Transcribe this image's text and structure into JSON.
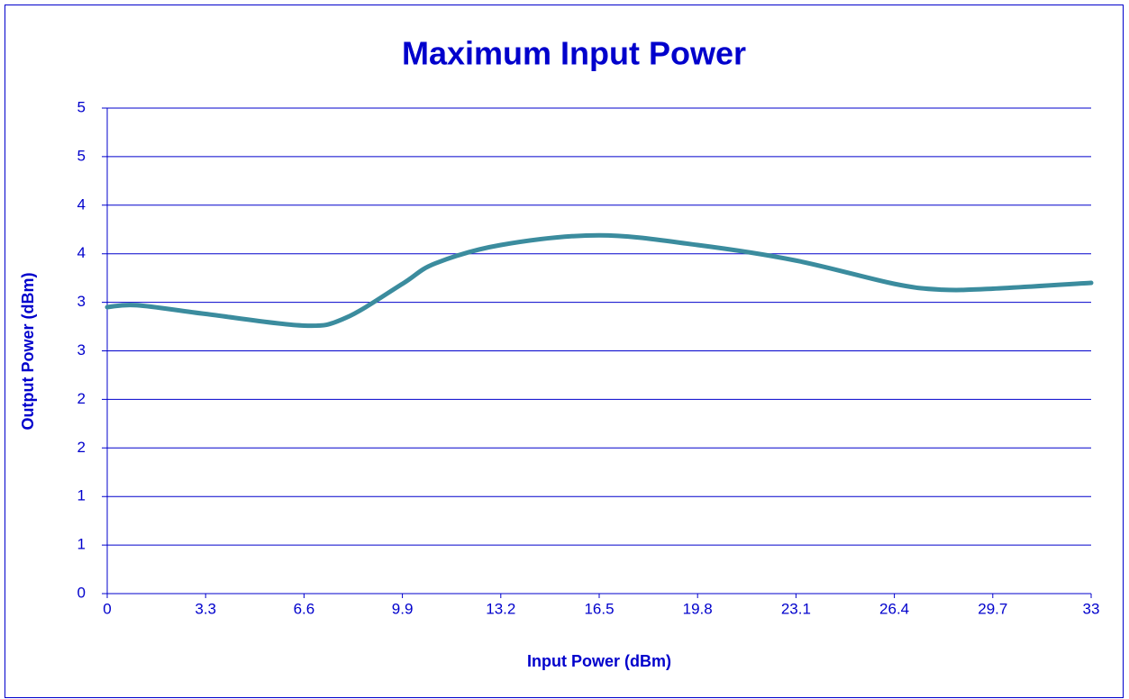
{
  "chart_data": {
    "type": "line",
    "title": "Maximum Input Power",
    "x_label": "Input Power (dBm)",
    "y_label": "Output Power (dBm)",
    "x": [
      0,
      1,
      3.3,
      6.6,
      8,
      9.9,
      11,
      13.2,
      16.5,
      19.8,
      23.1,
      26.4,
      28,
      29.7,
      33
    ],
    "series": [
      {
        "name": "Output Power",
        "color": "#3b8c9e",
        "values": [
          2.95,
          2.97,
          2.88,
          2.76,
          2.84,
          3.19,
          3.4,
          3.59,
          3.69,
          3.59,
          3.43,
          3.19,
          3.13,
          3.14,
          3.2
        ]
      }
    ],
    "xlim": [
      0,
      33
    ],
    "xticks": [
      0,
      3.3,
      6.6,
      9.9,
      13.2,
      16.5,
      19.8,
      23.1,
      26.4,
      29.7,
      33
    ],
    "ylim": [
      0,
      5
    ],
    "yticks": [
      0,
      {
        "value": 0.5,
        "label": "1"
      },
      {
        "value": 1,
        "label": "1"
      },
      {
        "value": 1.5,
        "label": "2"
      },
      {
        "value": 2,
        "label": "2"
      },
      {
        "value": 2.5,
        "label": "3"
      },
      {
        "value": 3,
        "label": "3"
      },
      {
        "value": 3.5,
        "label": "4"
      },
      {
        "value": 4,
        "label": "4"
      },
      {
        "value": 4.5,
        "label": "5"
      },
      {
        "value": 5,
        "label": "5"
      }
    ],
    "grid": true,
    "grid_color": "#0000cc"
  }
}
